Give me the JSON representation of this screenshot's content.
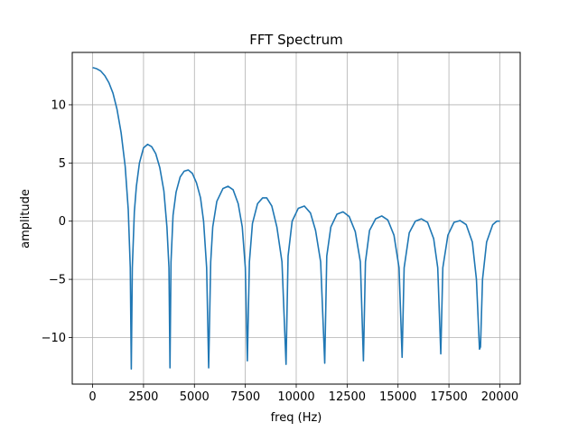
{
  "chart_data": {
    "type": "line",
    "title": "FFT Spectrum",
    "xlabel": "freq (Hz)",
    "ylabel": "amplitude",
    "xlim": [
      -1000,
      21000
    ],
    "ylim": [
      -14.0,
      14.5
    ],
    "xticks": [
      0,
      2500,
      5000,
      7500,
      10000,
      12500,
      15000,
      17500,
      20000
    ],
    "xtick_labels": [
      "0",
      "2500",
      "5000",
      "7500",
      "10000",
      "12500",
      "15000",
      "17500",
      "20000"
    ],
    "yticks": [
      -10,
      -5,
      0,
      5,
      10
    ],
    "ytick_labels": [
      "−10",
      "−5",
      "0",
      "5",
      "10"
    ],
    "grid": true,
    "line_color": "#1f77b4",
    "series": [
      {
        "name": "",
        "points": [
          [
            0,
            13.2
          ],
          [
            200,
            13.1
          ],
          [
            400,
            12.9
          ],
          [
            600,
            12.5
          ],
          [
            800,
            11.9
          ],
          [
            1000,
            11.0
          ],
          [
            1200,
            9.6
          ],
          [
            1400,
            7.6
          ],
          [
            1600,
            4.7
          ],
          [
            1750,
            1.0
          ],
          [
            1850,
            -4.0
          ],
          [
            1900,
            -12.7
          ],
          [
            1950,
            -4.0
          ],
          [
            2050,
            0.8
          ],
          [
            2150,
            3.0
          ],
          [
            2300,
            5.0
          ],
          [
            2500,
            6.3
          ],
          [
            2700,
            6.6
          ],
          [
            2900,
            6.4
          ],
          [
            3100,
            5.8
          ],
          [
            3300,
            4.6
          ],
          [
            3500,
            2.6
          ],
          [
            3650,
            -0.5
          ],
          [
            3750,
            -4.0
          ],
          [
            3800,
            -12.6
          ],
          [
            3850,
            -3.5
          ],
          [
            3950,
            0.5
          ],
          [
            4100,
            2.5
          ],
          [
            4300,
            3.8
          ],
          [
            4500,
            4.3
          ],
          [
            4700,
            4.4
          ],
          [
            4900,
            4.1
          ],
          [
            5100,
            3.3
          ],
          [
            5300,
            2.0
          ],
          [
            5450,
            0.0
          ],
          [
            5600,
            -4.0
          ],
          [
            5700,
            -12.6
          ],
          [
            5800,
            -3.5
          ],
          [
            5900,
            -0.5
          ],
          [
            6100,
            1.7
          ],
          [
            6400,
            2.8
          ],
          [
            6650,
            3.0
          ],
          [
            6900,
            2.7
          ],
          [
            7150,
            1.5
          ],
          [
            7350,
            -0.5
          ],
          [
            7500,
            -4.0
          ],
          [
            7600,
            -12.0
          ],
          [
            7700,
            -3.5
          ],
          [
            7850,
            -0.2
          ],
          [
            8100,
            1.5
          ],
          [
            8350,
            2.0
          ],
          [
            8550,
            2.0
          ],
          [
            8800,
            1.3
          ],
          [
            9050,
            -0.5
          ],
          [
            9300,
            -3.5
          ],
          [
            9500,
            -12.3
          ],
          [
            9600,
            -3.0
          ],
          [
            9800,
            0.0
          ],
          [
            10100,
            1.1
          ],
          [
            10400,
            1.3
          ],
          [
            10700,
            0.7
          ],
          [
            10950,
            -0.8
          ],
          [
            11200,
            -3.5
          ],
          [
            11400,
            -12.2
          ],
          [
            11500,
            -3.0
          ],
          [
            11700,
            -0.5
          ],
          [
            12000,
            0.6
          ],
          [
            12300,
            0.8
          ],
          [
            12600,
            0.4
          ],
          [
            12900,
            -0.9
          ],
          [
            13150,
            -3.5
          ],
          [
            13300,
            -12.0
          ],
          [
            13400,
            -3.5
          ],
          [
            13600,
            -0.8
          ],
          [
            13900,
            0.2
          ],
          [
            14200,
            0.45
          ],
          [
            14500,
            0.1
          ],
          [
            14800,
            -1.2
          ],
          [
            15050,
            -4.0
          ],
          [
            15200,
            -11.7
          ],
          [
            15300,
            -4.0
          ],
          [
            15550,
            -1.0
          ],
          [
            15850,
            0.0
          ],
          [
            16150,
            0.2
          ],
          [
            16450,
            -0.1
          ],
          [
            16750,
            -1.5
          ],
          [
            16950,
            -4.0
          ],
          [
            17100,
            -11.4
          ],
          [
            17200,
            -4.0
          ],
          [
            17450,
            -1.2
          ],
          [
            17750,
            -0.1
          ],
          [
            18050,
            0.05
          ],
          [
            18350,
            -0.3
          ],
          [
            18650,
            -1.8
          ],
          [
            18850,
            -5.0
          ],
          [
            19000,
            -11.0
          ],
          [
            19050,
            -10.8
          ],
          [
            19150,
            -5.0
          ],
          [
            19350,
            -1.8
          ],
          [
            19650,
            -0.3
          ],
          [
            19850,
            0.0
          ],
          [
            20000,
            0.0
          ]
        ]
      }
    ]
  }
}
